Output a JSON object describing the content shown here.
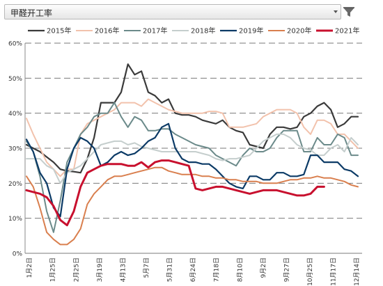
{
  "header": {
    "title": "甲醛开工率",
    "filter_icon": "filter-funnel-icon",
    "dropdown_icon": "chevron-down-icon"
  },
  "chart_data": {
    "type": "line",
    "title": "",
    "xlabel": "",
    "ylabel": "",
    "ylim": [
      0,
      60
    ],
    "yticks": [
      0,
      10,
      20,
      30,
      40,
      50,
      60
    ],
    "ytick_labels": [
      "0%",
      "10%",
      "20%",
      "30%",
      "40%",
      "50%",
      "60%"
    ],
    "xtick_labels": [
      "1月2日",
      "1月25日",
      "2月25日",
      "3月19日",
      "4月13日",
      "5月7日",
      "5月31日",
      "6月24日",
      "7月18日",
      "8月10日",
      "9月2日",
      "9月27日",
      "10月25日",
      "11月17日",
      "12月14日"
    ],
    "grid": "horizontal-dashed",
    "legend_position": "top",
    "series": [
      {
        "name": "2015年",
        "color": "#3a3a3a",
        "width": 2.2,
        "values": [
          31,
          30,
          29,
          27.5,
          26,
          24,
          23.5,
          23.3,
          23,
          27,
          33,
          43,
          43,
          43,
          46,
          54,
          51,
          52,
          46,
          45,
          43,
          44,
          40,
          39.5,
          39.5,
          39,
          38,
          37.5,
          37,
          38,
          36,
          35,
          34.5,
          31,
          30.5,
          30,
          34,
          36,
          36,
          35.5,
          36,
          39,
          40,
          42,
          43,
          41,
          36,
          37,
          39,
          39
        ]
      },
      {
        "name": "2016年",
        "color": "#f2c2ac",
        "width": 2,
        "values": [
          38.5,
          34,
          30,
          26,
          24,
          22,
          24,
          24,
          34,
          37,
          38,
          39,
          40,
          41,
          43,
          43,
          43,
          42,
          44,
          43,
          42,
          41,
          40.5,
          40,
          40,
          40,
          40,
          40.5,
          40.5,
          40,
          36,
          36,
          36,
          36.5,
          37,
          39,
          40,
          41,
          41,
          41,
          40,
          36,
          34,
          38,
          38,
          37,
          34,
          34,
          32,
          30
        ]
      },
      {
        "name": "2017年",
        "color": "#6b8a8a",
        "width": 2,
        "values": [
          32,
          29,
          22,
          12,
          6,
          15,
          26,
          30,
          34,
          36,
          39,
          40,
          40,
          43,
          39,
          36,
          39,
          38,
          35,
          35,
          35.5,
          35.5,
          34,
          33,
          32,
          31,
          30.5,
          30,
          28,
          27,
          26,
          25,
          28,
          30,
          29,
          29,
          30,
          33,
          35,
          35,
          35,
          29,
          29,
          33,
          31,
          31,
          34,
          33,
          28,
          28
        ]
      },
      {
        "name": "2018年",
        "color": "#c5cecd",
        "width": 2,
        "values": [
          27,
          27,
          27,
          25,
          24,
          20,
          23,
          24,
          25,
          27,
          29,
          31,
          31.5,
          32,
          32,
          31,
          31.5,
          30.5,
          30,
          29.5,
          29,
          29,
          29,
          29,
          29,
          29,
          28.5,
          28,
          27,
          26.5,
          27,
          27,
          27.5,
          28,
          30,
          32,
          33,
          34,
          34,
          33,
          31,
          30,
          29.5,
          28,
          28,
          30,
          31,
          29,
          33,
          31
        ]
      },
      {
        "name": "2019年",
        "color": "#0b3a66",
        "width": 2.2,
        "values": [
          32.5,
          29,
          23,
          20,
          13,
          10.5,
          24,
          30,
          33,
          32,
          30,
          25,
          26,
          28,
          29,
          28,
          28.5,
          30,
          32,
          33,
          36,
          37,
          30,
          27,
          26,
          26,
          25.5,
          25.5,
          24,
          22,
          20,
          19,
          18.5,
          22,
          22,
          21,
          21,
          23,
          23,
          22,
          22,
          22.5,
          28,
          28,
          26,
          26,
          26,
          24,
          23.5,
          22
        ]
      },
      {
        "name": "2020年",
        "color": "#d97f4e",
        "width": 2,
        "values": [
          22,
          19,
          13,
          6,
          4,
          2.5,
          2.5,
          4,
          7,
          14,
          17,
          19,
          21,
          22,
          22,
          22.5,
          23,
          23.5,
          24,
          24.5,
          24.5,
          23.5,
          23,
          22.5,
          22.5,
          22.5,
          22,
          22,
          21.5,
          21.5,
          21,
          21,
          20.5,
          20.5,
          20.5,
          20,
          20,
          20,
          20.5,
          21,
          21,
          21.5,
          21.5,
          22,
          21.5,
          21.5,
          21,
          20.5,
          19.5,
          19
        ]
      },
      {
        "name": "2021年",
        "color": "#c8102e",
        "width": 3,
        "values": [
          18,
          17.5,
          17,
          16,
          13.5,
          9.5,
          8,
          12,
          19,
          23,
          24,
          25,
          25.5,
          25.5,
          25.5,
          25,
          25,
          26,
          24.5,
          26,
          26.5,
          26.5,
          26,
          25.5,
          25,
          18.5,
          18,
          18.5,
          19,
          19,
          18.5,
          18,
          17.5,
          17,
          17.5,
          18,
          18,
          18,
          17.5,
          17,
          16.5,
          16.5,
          17,
          19,
          19
        ]
      }
    ]
  }
}
